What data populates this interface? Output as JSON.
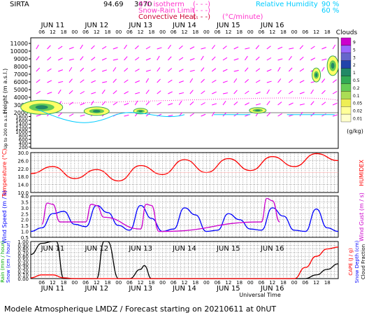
{
  "header": {
    "site": "SIRTA",
    "coord": "94.69",
    "center_number": "3470",
    "legend_items": [
      {
        "label": "0°C isotherm",
        "sample": "(- - -)",
        "color": "#ff33cc"
      },
      {
        "label": "Snow-Rain Limit",
        "sample": "(- - -)",
        "color": "#ff33cc"
      },
      {
        "label": "Convective Heat.",
        "sample": "(- - -)",
        "color": "#cc0033"
      },
      {
        "label": "(°C/minute)",
        "sample": "",
        "color": "#ff33cc"
      }
    ],
    "rh_label": "Relative Humidity",
    "rh_90": "90 %",
    "rh_60": "60 %"
  },
  "day_labels": [
    "JUN 11",
    "JUN 12",
    "JUN 13",
    "JUN 14",
    "JUN 15",
    "JUN 16"
  ],
  "hour_labels": [
    "06",
    "12",
    "18",
    "00"
  ],
  "footer": {
    "title": "Modele Atmospherique LMDZ / Forecast starting on 20210611 at 0hUT",
    "xlabel": "Universal Time"
  },
  "colors": {
    "temperature": "#ff0000",
    "humidex": "#ff0000",
    "wind_speed": "#0000ff",
    "wind_gust": "#cc00cc",
    "rain": "#00aa00",
    "snow": "#0000ff",
    "cape": "#ff0000",
    "snow_depth": "#0000ff",
    "cloud_fraction": "#000000",
    "wind_arrows": "#ff00ff",
    "rh": "#00ccff"
  },
  "chart_data": [
    {
      "type": "heatmap",
      "panel": "clouds",
      "ylabel": "Height (m a.s.l.)",
      "ylabel_low": "Up to 200 m a.s.l.",
      "yticks_upper": [
        11000,
        10000,
        9000,
        8000,
        7000,
        6000,
        5000,
        4000,
        3000,
        2000
      ],
      "yticks_lower": [
        1800,
        1600,
        1400,
        1200,
        1000,
        800,
        600,
        400,
        200
      ],
      "colorbar_title": "Clouds",
      "colorbar_unit": "(g/kg)",
      "colorbar_ticks": [
        "9",
        "5",
        "3",
        "2",
        "1",
        "0.5",
        "0.2",
        "0.1",
        "0.05",
        "0.02",
        "0.01"
      ],
      "colorbar_colors": [
        "#cc00cc",
        "#9966ff",
        "#6666cc",
        "#2244aa",
        "#228866",
        "#33aa55",
        "#66cc55",
        "#aadd55",
        "#eeee55",
        "#ffff99",
        "#ffffcc"
      ]
    },
    {
      "type": "line",
      "panel": "temperature",
      "ylabel": "Temperature (°C)",
      "ylabel_right": "HUMIDEX",
      "ylim": [
        10,
        30
      ],
      "yticks": [
        "30.0",
        "26.0",
        "22.0",
        "18.0",
        "14.0",
        "10.0"
      ],
      "series": [
        {
          "name": "Temperature",
          "x": [
            0,
            12,
            24,
            36,
            48,
            60,
            72,
            84,
            96,
            108,
            120,
            132,
            144,
            156,
            168
          ],
          "values": [
            19.5,
            23.0,
            17.0,
            21.5,
            15.8,
            23.5,
            19.0,
            26.5,
            20.0,
            27.0,
            21.0,
            28.0,
            23.0,
            29.5,
            26.0
          ]
        }
      ]
    },
    {
      "type": "line",
      "panel": "wind",
      "ylabel": "Wind Speed (m / s)",
      "ylabel_right": "Wind Gust (m / s)",
      "ylim": [
        0.5,
        4.0
      ],
      "yticks": [
        "4.0",
        "3.5",
        "3.0",
        "2.5",
        "2.0",
        "1.5",
        "1.0",
        "0.5"
      ],
      "series": [
        {
          "name": "Wind Speed",
          "x": [
            0,
            6,
            12,
            18,
            24,
            30,
            36,
            42,
            48,
            54,
            60,
            66,
            72,
            78,
            84,
            90,
            96,
            102,
            108,
            114,
            120,
            126,
            132,
            138,
            144,
            150,
            156,
            162,
            168
          ],
          "values": [
            1.0,
            1.3,
            2.5,
            2.7,
            1.6,
            1.4,
            3.2,
            2.6,
            1.5,
            1.1,
            3.2,
            2.1,
            1.0,
            1.2,
            3.0,
            2.4,
            1.0,
            1.1,
            2.5,
            2.0,
            1.2,
            1.1,
            3.0,
            2.3,
            1.1,
            1.0,
            2.9,
            1.3,
            1.0
          ]
        },
        {
          "name": "Wind Gust",
          "x": [
            6,
            9,
            12,
            16,
            30,
            33,
            36,
            40,
            60,
            63,
            66,
            70,
            72,
            126,
            129,
            132,
            136
          ],
          "values": [
            1.6,
            3.4,
            3.3,
            1.8,
            1.8,
            3.3,
            3.2,
            2.2,
            1.2,
            3.3,
            3.2,
            1.0,
            1.0,
            1.8,
            3.8,
            3.6,
            1.8
          ]
        }
      ]
    },
    {
      "type": "line",
      "panel": "rain",
      "ylabel": "Rain (mm / hour)",
      "ylabel2": "Snow (cm / hour)",
      "ylabel_right": "CAPE (J / g)",
      "ylabel_right2": "Snow Depth (cm)",
      "ylabel_right3": "Cloud Fraction",
      "ylim": [
        0,
        1.0
      ],
      "yticks": [
        "1.00",
        "0.90",
        "0.80",
        "0.70",
        "0.60",
        "0.50",
        "0.40",
        "0.30",
        "0.20",
        "0.10",
        "0.00"
      ],
      "series": [
        {
          "name": "Cloud Fraction",
          "x": [
            0,
            6,
            12,
            14,
            18,
            20,
            24,
            30,
            36,
            40,
            42,
            48,
            54,
            60,
            62,
            66,
            72,
            96,
            120,
            150,
            156,
            162,
            168
          ],
          "values": [
            0.65,
            0.95,
            1.0,
            1.0,
            0.0,
            0.0,
            0.0,
            0.0,
            0.0,
            1.0,
            1.0,
            0.0,
            0.0,
            0.25,
            0.35,
            0.0,
            0.0,
            0.0,
            0.0,
            0.0,
            0.1,
            0.25,
            0.4
          ]
        },
        {
          "name": "CAPE",
          "x": [
            0,
            6,
            12,
            18,
            24,
            48,
            72,
            96,
            120,
            144,
            150,
            156,
            162,
            168
          ],
          "values": [
            0.02,
            0.1,
            0.1,
            0.02,
            0.0,
            0.0,
            0.0,
            0.0,
            0.0,
            0.0,
            0.3,
            0.6,
            0.8,
            0.85
          ]
        }
      ]
    }
  ]
}
